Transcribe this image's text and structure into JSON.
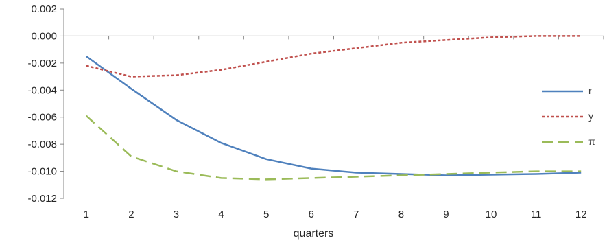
{
  "chart_data": {
    "type": "line",
    "title": "",
    "xlabel": "quarters",
    "ylabel": "",
    "x": [
      1,
      2,
      3,
      4,
      5,
      6,
      7,
      8,
      9,
      10,
      11,
      12
    ],
    "x_tick_labels": [
      "1",
      "2",
      "3",
      "4",
      "5",
      "6",
      "7",
      "8",
      "9",
      "10",
      "11",
      "12"
    ],
    "ylim": [
      -0.012,
      0.002
    ],
    "y_ticks": [
      0.002,
      0.0,
      -0.002,
      -0.004,
      -0.006,
      -0.008,
      -0.01,
      -0.012
    ],
    "y_tick_labels": [
      "0.002",
      "0.000",
      "-0.002",
      "-0.004",
      "-0.006",
      "-0.008",
      "-0.010",
      "-0.012"
    ],
    "grid": false,
    "legend_position": "right",
    "series": [
      {
        "name": "r",
        "color": "#4f81bd",
        "style": "solid",
        "values": [
          -0.0015,
          -0.0039,
          -0.0062,
          -0.0079,
          -0.0091,
          -0.0098,
          -0.0101,
          -0.0102,
          -0.0103,
          -0.01025,
          -0.0102,
          -0.0101
        ]
      },
      {
        "name": "y",
        "color": "#c0504d",
        "style": "short-dash",
        "values": [
          -0.0022,
          -0.003,
          -0.0029,
          -0.0025,
          -0.0019,
          -0.0013,
          -0.0009,
          -0.0005,
          -0.0003,
          -0.0001,
          0.0,
          0.0
        ]
      },
      {
        "name": "π",
        "color": "#9bbb59",
        "style": "long-dash",
        "values": [
          -0.0059,
          -0.0089,
          -0.01,
          -0.0105,
          -0.0106,
          -0.0105,
          -0.0104,
          -0.0103,
          -0.0102,
          -0.0101,
          -0.01,
          -0.01
        ]
      }
    ]
  }
}
